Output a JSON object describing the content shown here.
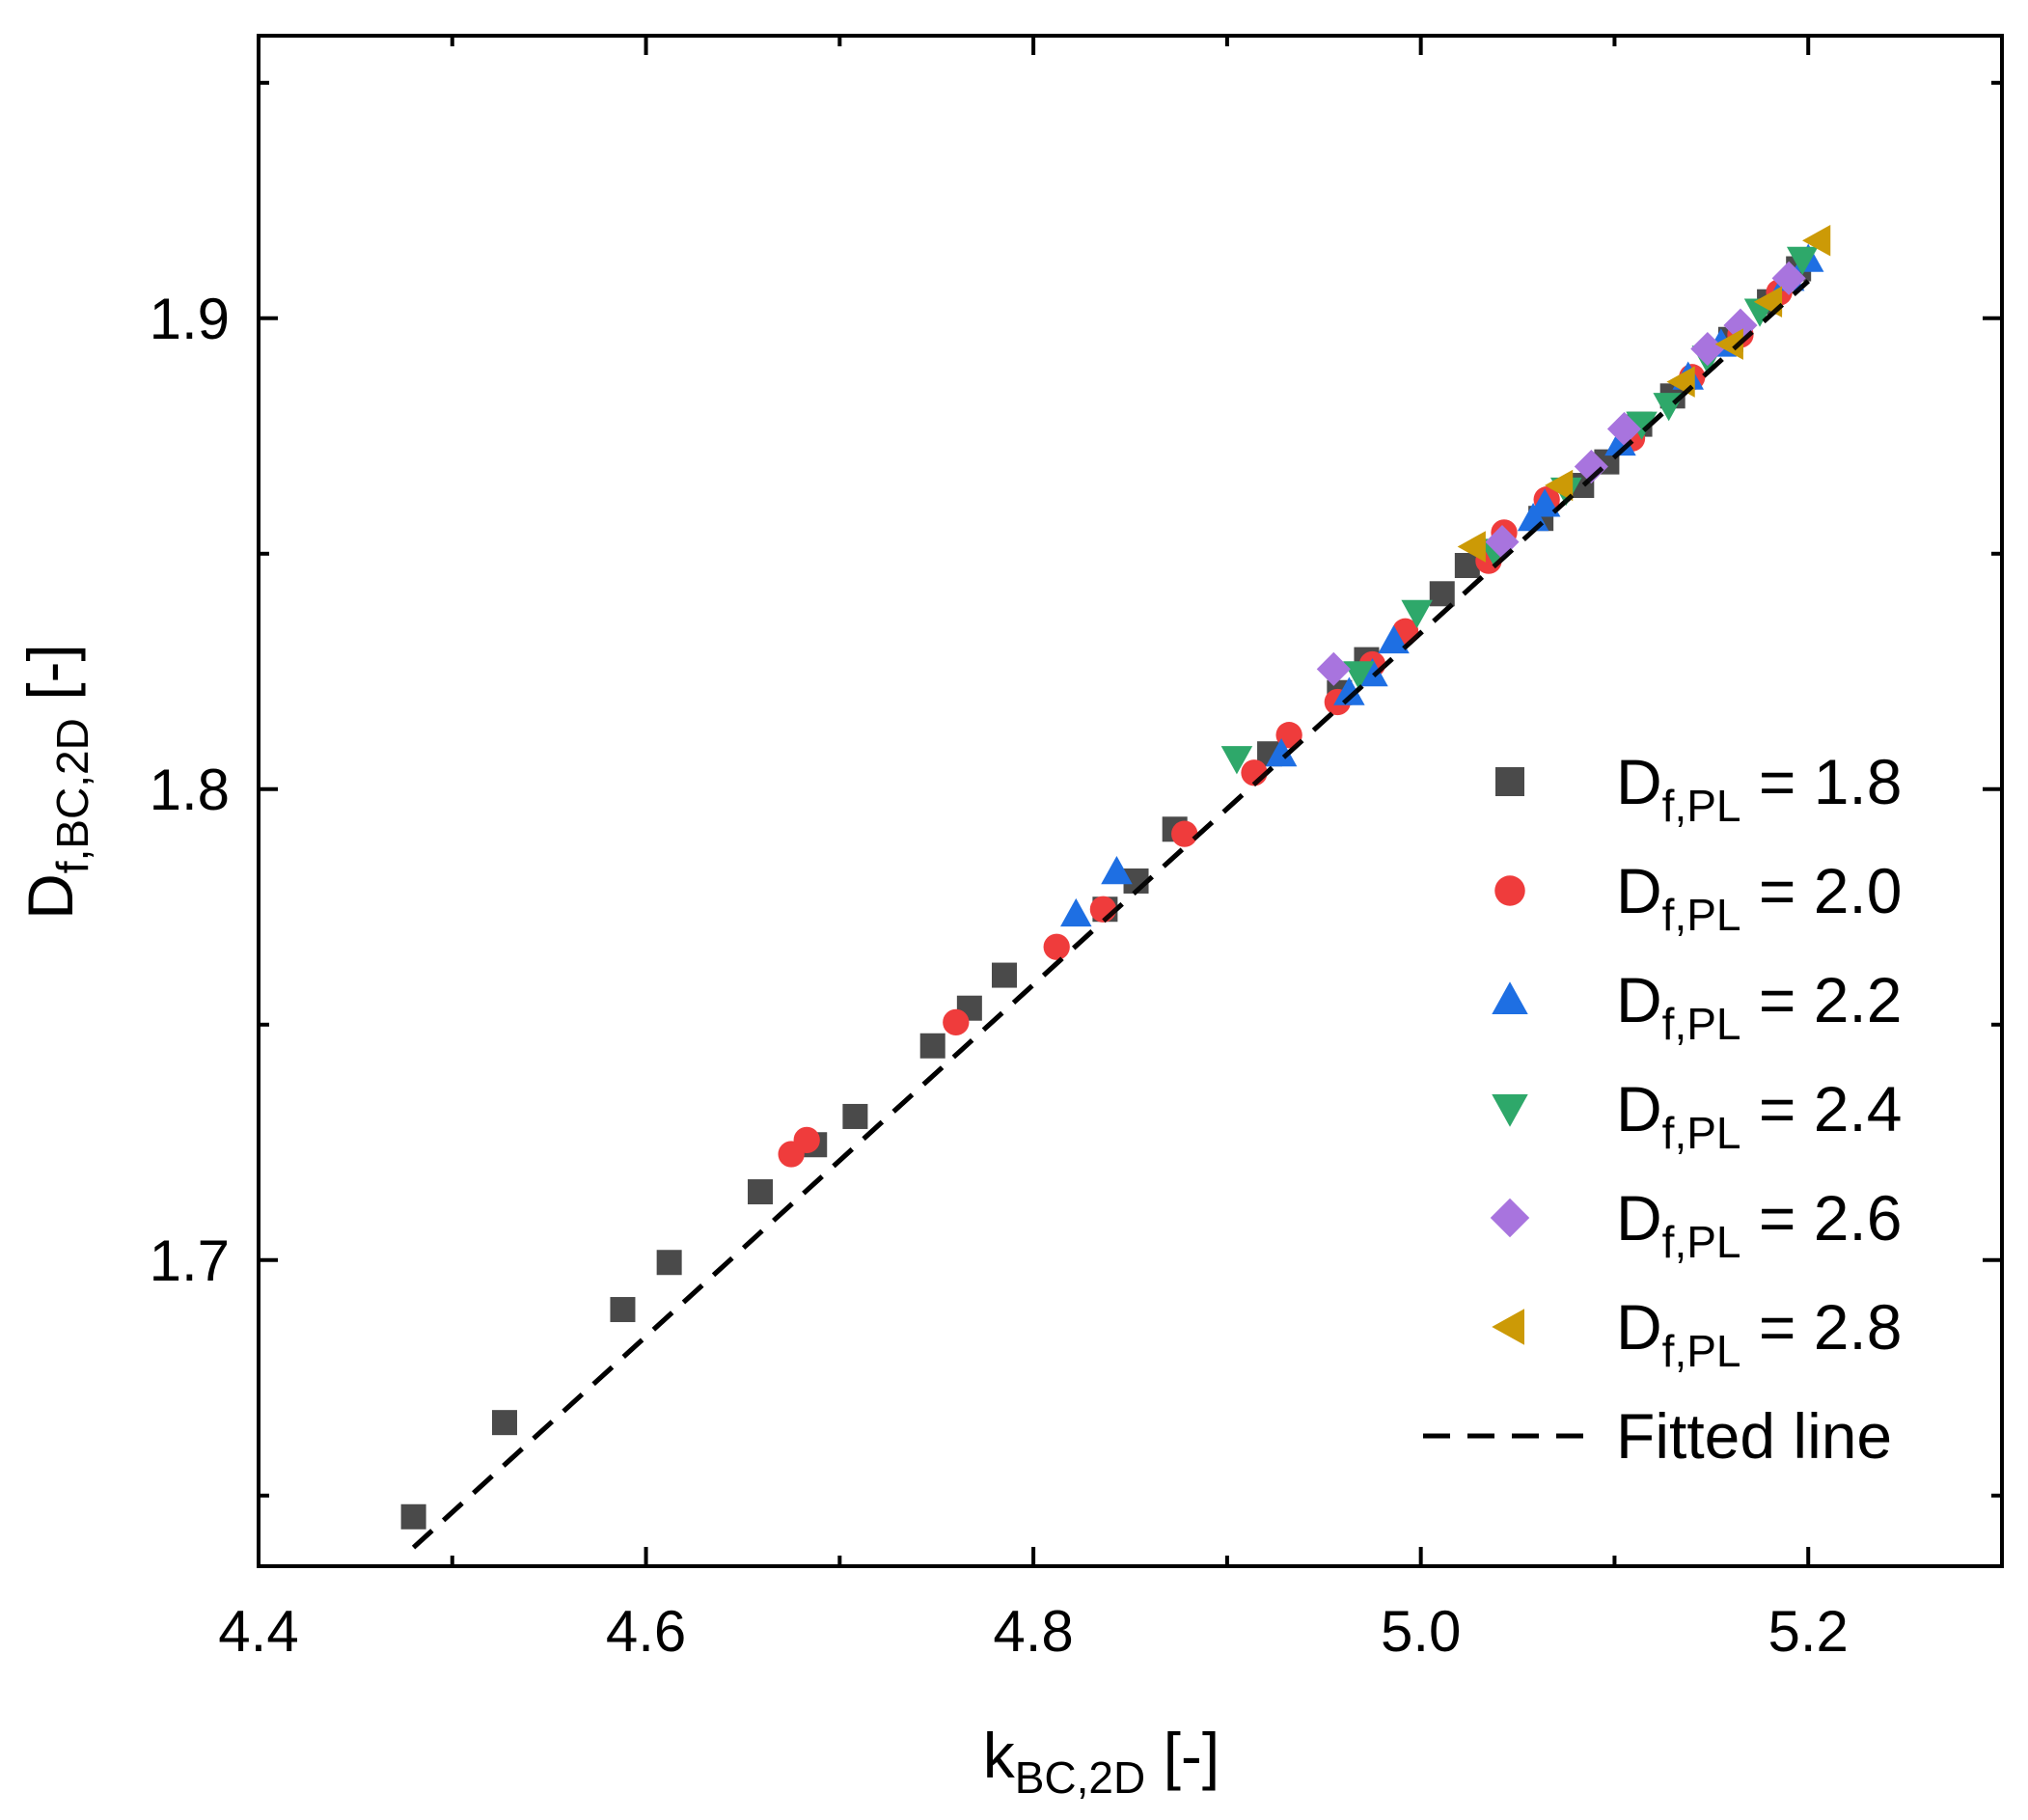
{
  "chart_data": {
    "type": "scatter",
    "title": "",
    "xlabel": {
      "main": "k",
      "subscript": "BC,2D",
      "unit": "[-]"
    },
    "ylabel": {
      "main": "D",
      "subscript": "f,BC,2D",
      "unit": "[-]"
    },
    "xlim": [
      4.4,
      5.3
    ],
    "ylim": [
      1.635,
      1.96
    ],
    "xticks": [
      4.4,
      4.6,
      4.8,
      5.0,
      5.2
    ],
    "xtick_labels": [
      "4.4",
      "4.6",
      "4.8",
      "5.0",
      "5.2"
    ],
    "yticks": [
      1.7,
      1.8,
      1.9
    ],
    "ytick_labels": [
      "1.7",
      "1.8",
      "1.9"
    ],
    "legend_position": "bottom-right",
    "series": [
      {
        "name": "D_f,PL = 1.8",
        "legend": {
          "main": "D",
          "subscript": "f,PL",
          "rest": " = 1.8"
        },
        "marker": "square",
        "color": "#4a4a4a",
        "points": [
          [
            4.48,
            1.6455
          ],
          [
            4.527,
            1.6655
          ],
          [
            4.588,
            1.6895
          ],
          [
            4.612,
            1.6995
          ],
          [
            4.659,
            1.7145
          ],
          [
            4.687,
            1.7245
          ],
          [
            4.708,
            1.7305
          ],
          [
            4.748,
            1.7455
          ],
          [
            4.767,
            1.7535
          ],
          [
            4.785,
            1.7605
          ],
          [
            4.837,
            1.7745
          ],
          [
            4.853,
            1.7805
          ],
          [
            4.873,
            1.7915
          ],
          [
            4.922,
            1.8075
          ],
          [
            4.958,
            1.8205
          ],
          [
            4.972,
            1.8275
          ],
          [
            5.011,
            1.8415
          ],
          [
            5.024,
            1.8475
          ],
          [
            5.062,
            1.8575
          ],
          [
            5.083,
            1.8645
          ],
          [
            5.096,
            1.8695
          ],
          [
            5.113,
            1.8775
          ],
          [
            5.13,
            1.8835
          ],
          [
            5.16,
            1.8955
          ],
          [
            5.18,
            1.9035
          ],
          [
            5.195,
            1.9105
          ]
        ]
      },
      {
        "name": "D_f,PL = 2.0",
        "legend": {
          "main": "D",
          "subscript": "f,PL",
          "rest": " = 2.0"
        },
        "marker": "circle",
        "color": "#ef3c3c",
        "points": [
          [
            4.675,
            1.7225
          ],
          [
            4.683,
            1.7255
          ],
          [
            4.76,
            1.7505
          ],
          [
            4.812,
            1.7665
          ],
          [
            4.836,
            1.7745
          ],
          [
            4.878,
            1.7905
          ],
          [
            4.914,
            1.8035
          ],
          [
            4.932,
            1.8115
          ],
          [
            4.957,
            1.8185
          ],
          [
            4.975,
            1.8265
          ],
          [
            4.992,
            1.8335
          ],
          [
            5.035,
            1.8485
          ],
          [
            5.043,
            1.8545
          ],
          [
            5.065,
            1.8615
          ],
          [
            5.109,
            1.8745
          ],
          [
            5.14,
            1.8875
          ],
          [
            5.165,
            1.8965
          ],
          [
            5.185,
            1.9055
          ]
        ]
      },
      {
        "name": "D_f,PL = 2.2",
        "legend": {
          "main": "D",
          "subscript": "f,PL",
          "rest": " = 2.2"
        },
        "marker": "triangle-up",
        "color": "#1e6fe3",
        "points": [
          [
            4.822,
            1.7735
          ],
          [
            4.843,
            1.7825
          ],
          [
            4.928,
            1.8075
          ],
          [
            4.963,
            1.8205
          ],
          [
            4.975,
            1.8245
          ],
          [
            4.986,
            1.8315
          ],
          [
            5.058,
            1.8575
          ],
          [
            5.064,
            1.8605
          ],
          [
            5.103,
            1.8735
          ],
          [
            5.138,
            1.8875
          ],
          [
            5.155,
            1.8945
          ],
          [
            5.19,
            1.9085
          ],
          [
            5.2,
            1.9125
          ]
        ]
      },
      {
        "name": "D_f,PL = 2.4",
        "legend": {
          "main": "D",
          "subscript": "f,PL",
          "rest": " = 2.4"
        },
        "marker": "triangle-down",
        "color": "#2ea86a",
        "points": [
          [
            4.905,
            1.8065
          ],
          [
            4.968,
            1.8245
          ],
          [
            4.998,
            1.8375
          ],
          [
            5.038,
            1.8505
          ],
          [
            5.075,
            1.8635
          ],
          [
            5.114,
            1.8775
          ],
          [
            5.128,
            1.8815
          ],
          [
            5.148,
            1.8915
          ],
          [
            5.175,
            1.9015
          ],
          [
            5.197,
            1.9125
          ]
        ]
      },
      {
        "name": "D_f,PL = 2.6",
        "legend": {
          "main": "D",
          "subscript": "f,PL",
          "rest": " = 2.6"
        },
        "marker": "diamond",
        "color": "#a874de",
        "points": [
          [
            4.955,
            1.8255
          ],
          [
            5.042,
            1.8525
          ],
          [
            5.088,
            1.8685
          ],
          [
            5.105,
            1.8765
          ],
          [
            5.148,
            1.8935
          ],
          [
            5.165,
            1.8985
          ],
          [
            5.19,
            1.9085
          ]
        ]
      },
      {
        "name": "D_f,PL = 2.8",
        "legend": {
          "main": "D",
          "subscript": "f,PL",
          "rest": " = 2.8"
        },
        "marker": "triangle-left",
        "color": "#cc9a06",
        "points": [
          [
            5.027,
            1.8515
          ],
          [
            5.072,
            1.8645
          ],
          [
            5.135,
            1.8865
          ],
          [
            5.16,
            1.8945
          ],
          [
            5.18,
            1.9035
          ],
          [
            5.205,
            1.9165
          ]
        ]
      }
    ],
    "fitted_line": {
      "name": "Fitted line",
      "legend": "Fitted line",
      "style": "dashed",
      "color": "#000000",
      "x_range": [
        4.48,
        5.2
      ],
      "slope": 0.3735,
      "intercept": -0.0343
    }
  }
}
